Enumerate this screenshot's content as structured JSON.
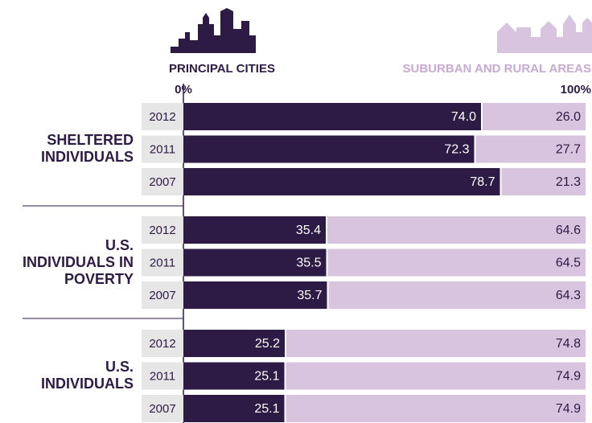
{
  "chart_data": {
    "type": "stacked-bar-horizontal",
    "groups": [
      {
        "label": "SHELTERED INDIVIDUALS",
        "categories": [
          "2012",
          "2011",
          "2007"
        ]
      },
      {
        "label": "U.S. INDIVIDUALS IN POVERTY",
        "categories": [
          "2012",
          "2011",
          "2007"
        ]
      },
      {
        "label": "U.S. INDIVIDUALS",
        "categories": [
          "2012",
          "2011",
          "2007"
        ]
      }
    ],
    "series": [
      {
        "name": "PRINCIPAL CITIES",
        "color": "#2d1b45",
        "label_color": "#ffffff",
        "values": [
          [
            74.0,
            72.3,
            78.7
          ],
          [
            35.4,
            35.5,
            35.7
          ],
          [
            25.2,
            25.1,
            25.1
          ]
        ],
        "value_labels": [
          [
            "74.0",
            "72.3",
            "78.7"
          ],
          [
            "35.4",
            "35.5",
            "35.7"
          ],
          [
            "25.2",
            "25.1",
            "25.1"
          ]
        ]
      },
      {
        "name": "SUBURBAN AND RURAL AREAS",
        "color": "#d8c4de",
        "label_color": "#2d1b45",
        "values": [
          [
            26.0,
            27.7,
            21.3
          ],
          [
            64.6,
            64.5,
            64.3
          ],
          [
            74.8,
            74.9,
            74.9
          ]
        ],
        "value_labels": [
          [
            "26.0",
            "27.7",
            "21.3"
          ],
          [
            "64.6",
            "64.5",
            "64.3"
          ],
          [
            "74.8",
            "74.9",
            "74.9"
          ]
        ]
      }
    ],
    "xlim": [
      0,
      100
    ],
    "xticks": [
      {
        "value": 0,
        "label": "0%"
      },
      {
        "value": 100,
        "label": "100%"
      }
    ]
  }
}
